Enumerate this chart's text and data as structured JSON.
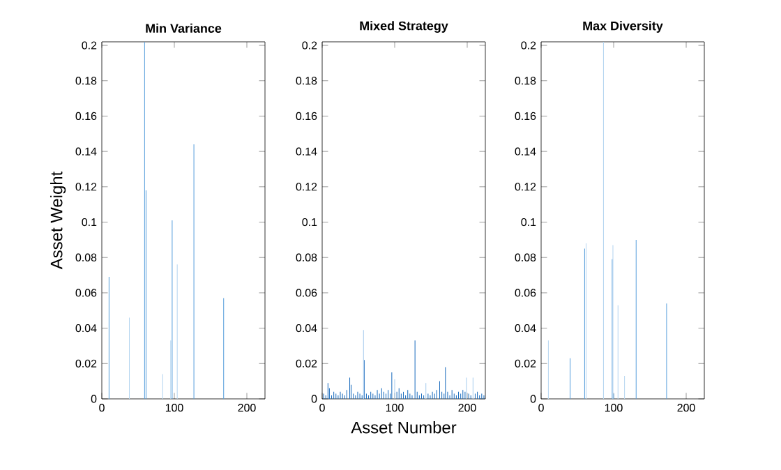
{
  "chart_data": [
    {
      "type": "bar",
      "title": "Min Variance",
      "ylabel": "Asset Weight",
      "xlim": [
        0,
        225
      ],
      "ylim": [
        0,
        0.202
      ],
      "xticks": [
        0,
        100,
        200
      ],
      "yticks": [
        0,
        0.02,
        0.04,
        0.06,
        0.08,
        0.1,
        0.12,
        0.14,
        0.16,
        0.18,
        0.2
      ],
      "series": [
        {
          "color": "#5aa0dc",
          "x": [
            10,
            59,
            61,
            97,
            127,
            168
          ],
          "values": [
            0.069,
            0.202,
            0.118,
            0.101,
            0.144,
            0.057
          ]
        },
        {
          "color": "#b5d5f0",
          "x": [
            38,
            84,
            95,
            104
          ],
          "values": [
            0.046,
            0.014,
            0.033,
            0.076
          ]
        }
      ]
    },
    {
      "type": "bar",
      "title": "Mixed Strategy",
      "xlabel": "Asset Number",
      "xlim": [
        0,
        225
      ],
      "ylim": [
        0,
        0.202
      ],
      "xticks": [
        0,
        100,
        200
      ],
      "yticks": [
        0,
        0.02,
        0.04,
        0.06,
        0.08,
        0.1,
        0.12,
        0.14,
        0.16,
        0.18,
        0.2
      ],
      "series": [
        {
          "color": "#1f6fbf",
          "x": [
            2,
            5,
            8,
            10,
            13,
            16,
            19,
            22,
            25,
            28,
            31,
            34,
            38,
            40,
            43,
            46,
            49,
            52,
            55,
            58,
            61,
            64,
            67,
            70,
            73,
            76,
            79,
            82,
            85,
            88,
            91,
            94,
            96,
            103,
            106,
            109,
            112,
            115,
            118,
            121,
            124,
            128,
            131,
            134,
            137,
            140,
            146,
            149,
            152,
            155,
            158,
            162,
            165,
            168,
            170,
            173,
            176,
            179,
            182,
            185,
            188,
            191,
            194,
            197,
            202,
            205,
            211,
            214,
            217,
            220,
            223
          ],
          "values": [
            0.003,
            0.002,
            0.009,
            0.006,
            0.002,
            0.004,
            0.003,
            0.002,
            0.004,
            0.003,
            0.002,
            0.005,
            0.012,
            0.008,
            0.003,
            0.002,
            0.004,
            0.003,
            0.002,
            0.022,
            0.003,
            0.002,
            0.004,
            0.003,
            0.002,
            0.005,
            0.003,
            0.006,
            0.004,
            0.003,
            0.005,
            0.003,
            0.015,
            0.004,
            0.006,
            0.003,
            0.004,
            0.002,
            0.005,
            0.003,
            0.002,
            0.033,
            0.004,
            0.002,
            0.003,
            0.002,
            0.003,
            0.002,
            0.004,
            0.003,
            0.005,
            0.01,
            0.004,
            0.003,
            0.018,
            0.004,
            0.002,
            0.005,
            0.003,
            0.002,
            0.004,
            0.003,
            0.005,
            0.004,
            0.003,
            0.002,
            0.003,
            0.004,
            0.002,
            0.003,
            0.002
          ]
        },
        {
          "color": "#a9cdee",
          "x": [
            57,
            100,
            143,
            199,
            208
          ],
          "values": [
            0.039,
            0.011,
            0.009,
            0.012,
            0.012
          ]
        }
      ]
    },
    {
      "type": "bar",
      "title": "Max Diversity",
      "xlim": [
        0,
        225
      ],
      "ylim": [
        0,
        0.202
      ],
      "xticks": [
        0,
        100,
        200
      ],
      "yticks": [
        0,
        0.02,
        0.04,
        0.06,
        0.08,
        0.1,
        0.12,
        0.14,
        0.16,
        0.18,
        0.2
      ],
      "series": [
        {
          "color": "#5aa0dc",
          "x": [
            40,
            60,
            98,
            100,
            131,
            173
          ],
          "values": [
            0.023,
            0.085,
            0.079,
            0.003,
            0.09,
            0.054
          ]
        },
        {
          "color": "#b5d5f0",
          "x": [
            10,
            62,
            86,
            99,
            106,
            115
          ],
          "values": [
            0.033,
            0.088,
            0.202,
            0.087,
            0.053,
            0.013
          ]
        }
      ]
    }
  ]
}
